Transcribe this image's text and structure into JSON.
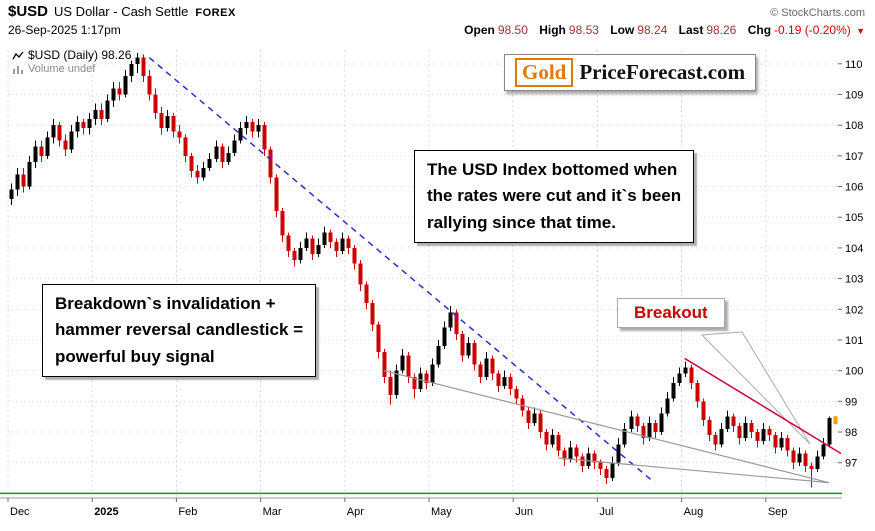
{
  "header": {
    "symbol": "$USD",
    "description": "US Dollar - Cash Settle",
    "exchange": "FOREX",
    "copyright": "© StockCharts.com",
    "datetime": "26-Sep-2025 1:17pm",
    "quote_items": [
      {
        "label": "Open",
        "value": "98.50"
      },
      {
        "label": "High",
        "value": "98.53"
      },
      {
        "label": "Low",
        "value": "98.24"
      },
      {
        "label": "Last",
        "value": "98.26"
      },
      {
        "label": "Chg",
        "value": "-0.19 (-0.20%)"
      }
    ],
    "down_triangle": "▼"
  },
  "legend": {
    "series": "$USD (Daily) 98.26",
    "volume": "Volume undef"
  },
  "logo": {
    "gold": "Gold",
    "rest": "PriceForecast.com"
  },
  "annotations": {
    "note_top": "The USD Index bottomed when\nthe rates were cut and it`s been\nrallying since that time.",
    "note_left": "Breakdown`s invalidation +\nhammer reversal candlestick =\npowerful buy signal",
    "breakout_label": "Breakout"
  },
  "chart_data": {
    "type": "candlestick",
    "symbol": "$USD",
    "timeframe": "Daily",
    "last_price": 98.26,
    "ylim": [
      95.85,
      110.45
    ],
    "y_ticks": [
      97,
      98,
      99,
      100,
      101,
      102,
      103,
      104,
      105,
      106,
      107,
      108,
      109,
      110
    ],
    "x_labels": [
      {
        "label": "Dec",
        "index": 0
      },
      {
        "label": "2025",
        "index": 14,
        "bold": true
      },
      {
        "label": "Feb",
        "index": 28
      },
      {
        "label": "Mar",
        "index": 42
      },
      {
        "label": "Apr",
        "index": 56
      },
      {
        "label": "May",
        "index": 70
      },
      {
        "label": "Jun",
        "index": 84
      },
      {
        "label": "Jul",
        "index": 98
      },
      {
        "label": "Aug",
        "index": 112
      },
      {
        "label": "Sep",
        "index": 126
      }
    ],
    "colors": {
      "up": "#000000",
      "down": "#cc0000",
      "last": "#ff9900",
      "grid": "#d9d9d9"
    },
    "candles": [
      [
        105.6,
        106.1,
        105.4,
        105.9
      ],
      [
        105.9,
        106.6,
        105.7,
        106.4
      ],
      [
        106.4,
        106.6,
        105.8,
        106.0
      ],
      [
        106.0,
        107.0,
        105.9,
        106.8
      ],
      [
        106.8,
        107.5,
        106.6,
        107.3
      ],
      [
        107.3,
        107.5,
        106.8,
        107.0
      ],
      [
        107.0,
        107.8,
        106.9,
        107.6
      ],
      [
        107.6,
        108.2,
        107.4,
        108.0
      ],
      [
        108.0,
        108.1,
        107.3,
        107.5
      ],
      [
        107.5,
        107.7,
        107.0,
        107.2
      ],
      [
        107.2,
        108.0,
        107.1,
        107.8
      ],
      [
        107.8,
        108.3,
        107.6,
        108.1
      ],
      [
        108.1,
        108.2,
        107.7,
        107.9
      ],
      [
        107.9,
        108.4,
        107.7,
        108.2
      ],
      [
        108.2,
        108.7,
        108.0,
        108.5
      ],
      [
        108.5,
        108.7,
        108.0,
        108.2
      ],
      [
        108.2,
        109.0,
        108.1,
        108.8
      ],
      [
        108.8,
        109.4,
        108.6,
        109.2
      ],
      [
        109.2,
        109.4,
        108.8,
        109.0
      ],
      [
        109.0,
        109.8,
        108.9,
        109.6
      ],
      [
        109.6,
        110.1,
        109.4,
        110.0
      ],
      [
        110.0,
        110.35,
        109.7,
        110.2
      ],
      [
        110.2,
        110.3,
        109.4,
        109.6
      ],
      [
        109.6,
        109.8,
        108.8,
        109.0
      ],
      [
        109.0,
        109.2,
        108.2,
        108.4
      ],
      [
        108.4,
        108.6,
        107.7,
        107.9
      ],
      [
        107.9,
        108.5,
        107.8,
        108.3
      ],
      [
        108.3,
        108.4,
        107.6,
        107.8
      ],
      [
        107.8,
        108.0,
        107.4,
        107.6
      ],
      [
        107.6,
        107.7,
        106.8,
        107.0
      ],
      [
        107.0,
        107.1,
        106.3,
        106.5
      ],
      [
        106.5,
        106.7,
        106.1,
        106.3
      ],
      [
        106.3,
        106.8,
        106.2,
        106.6
      ],
      [
        106.6,
        107.1,
        106.5,
        106.9
      ],
      [
        106.9,
        107.5,
        106.8,
        107.3
      ],
      [
        107.3,
        107.4,
        106.6,
        106.8
      ],
      [
        106.8,
        107.3,
        106.7,
        107.1
      ],
      [
        107.1,
        107.7,
        107.0,
        107.5
      ],
      [
        107.5,
        108.1,
        107.4,
        107.9
      ],
      [
        107.9,
        108.3,
        107.7,
        108.1
      ],
      [
        108.1,
        108.2,
        107.6,
        107.8
      ],
      [
        107.8,
        108.2,
        107.6,
        108.0
      ],
      [
        108.0,
        108.1,
        107.0,
        107.2
      ],
      [
        107.2,
        107.3,
        106.1,
        106.3
      ],
      [
        106.3,
        106.4,
        105.0,
        105.2
      ],
      [
        105.2,
        105.3,
        104.2,
        104.4
      ],
      [
        104.4,
        104.5,
        103.7,
        103.9
      ],
      [
        103.9,
        104.0,
        103.4,
        103.6
      ],
      [
        103.6,
        104.2,
        103.5,
        104.0
      ],
      [
        104.0,
        104.5,
        103.9,
        104.3
      ],
      [
        104.3,
        104.4,
        103.6,
        103.8
      ],
      [
        103.8,
        104.3,
        103.7,
        104.1
      ],
      [
        104.1,
        104.7,
        104.0,
        104.5
      ],
      [
        104.5,
        104.6,
        104.0,
        104.2
      ],
      [
        104.2,
        104.3,
        103.7,
        103.9
      ],
      [
        103.9,
        104.5,
        103.8,
        104.3
      ],
      [
        104.3,
        104.4,
        103.8,
        104.0
      ],
      [
        104.0,
        104.1,
        103.3,
        103.5
      ],
      [
        103.5,
        103.6,
        102.6,
        102.8
      ],
      [
        102.8,
        102.9,
        102.0,
        102.2
      ],
      [
        102.2,
        102.3,
        101.3,
        101.5
      ],
      [
        101.5,
        101.6,
        100.4,
        100.6
      ],
      [
        100.6,
        100.7,
        99.6,
        99.8
      ],
      [
        99.8,
        100.0,
        98.9,
        99.2
      ],
      [
        99.2,
        100.2,
        99.1,
        100.0
      ],
      [
        100.0,
        100.7,
        99.9,
        100.5
      ],
      [
        100.5,
        100.6,
        99.6,
        99.8
      ],
      [
        99.8,
        99.9,
        99.1,
        99.4
      ],
      [
        99.4,
        100.1,
        99.3,
        99.9
      ],
      [
        99.9,
        100.0,
        99.4,
        99.6
      ],
      [
        99.6,
        100.4,
        99.5,
        100.2
      ],
      [
        100.2,
        101.0,
        100.1,
        100.8
      ],
      [
        100.8,
        101.6,
        100.7,
        101.4
      ],
      [
        101.4,
        102.1,
        101.3,
        101.9
      ],
      [
        101.9,
        102.0,
        101.0,
        101.2
      ],
      [
        101.2,
        101.3,
        100.3,
        100.5
      ],
      [
        100.5,
        101.1,
        100.4,
        100.9
      ],
      [
        100.9,
        101.0,
        100.0,
        100.2
      ],
      [
        100.2,
        100.3,
        99.6,
        99.8
      ],
      [
        99.8,
        100.6,
        99.7,
        100.4
      ],
      [
        100.4,
        100.5,
        99.7,
        99.9
      ],
      [
        99.9,
        100.0,
        99.3,
        99.5
      ],
      [
        99.5,
        100.0,
        99.4,
        99.8
      ],
      [
        99.8,
        99.9,
        99.2,
        99.4
      ],
      [
        99.4,
        99.5,
        98.9,
        99.1
      ],
      [
        99.1,
        99.2,
        98.5,
        98.7
      ],
      [
        98.7,
        98.8,
        98.1,
        98.3
      ],
      [
        98.3,
        98.8,
        98.2,
        98.6
      ],
      [
        98.6,
        98.7,
        97.8,
        98.0
      ],
      [
        98.0,
        98.1,
        97.4,
        97.6
      ],
      [
        97.6,
        98.1,
        97.5,
        97.9
      ],
      [
        97.9,
        98.0,
        97.2,
        97.4
      ],
      [
        97.4,
        97.5,
        96.9,
        97.1
      ],
      [
        97.1,
        97.7,
        97.0,
        97.5
      ],
      [
        97.5,
        97.6,
        97.0,
        97.2
      ],
      [
        97.2,
        97.3,
        96.7,
        96.9
      ],
      [
        96.9,
        97.5,
        96.8,
        97.3
      ],
      [
        97.3,
        97.4,
        96.8,
        97.0
      ],
      [
        97.0,
        97.1,
        96.6,
        96.8
      ],
      [
        96.8,
        96.9,
        96.3,
        96.5
      ],
      [
        96.5,
        97.2,
        96.4,
        97.0
      ],
      [
        97.0,
        97.8,
        96.9,
        97.6
      ],
      [
        97.6,
        98.3,
        97.5,
        98.1
      ],
      [
        98.1,
        98.7,
        98.0,
        98.5
      ],
      [
        98.5,
        98.6,
        98.0,
        98.2
      ],
      [
        98.2,
        98.3,
        97.6,
        97.8
      ],
      [
        97.8,
        98.5,
        97.7,
        98.3
      ],
      [
        98.3,
        98.4,
        97.8,
        98.0
      ],
      [
        98.0,
        98.8,
        97.9,
        98.6
      ],
      [
        98.6,
        99.3,
        98.5,
        99.1
      ],
      [
        99.1,
        99.8,
        99.0,
        99.6
      ],
      [
        99.6,
        100.1,
        99.5,
        99.9
      ],
      [
        99.9,
        100.3,
        99.8,
        100.1
      ],
      [
        100.1,
        100.2,
        99.4,
        99.6
      ],
      [
        99.6,
        99.7,
        98.8,
        99.0
      ],
      [
        99.0,
        99.1,
        98.2,
        98.4
      ],
      [
        98.4,
        98.5,
        97.7,
        97.9
      ],
      [
        97.9,
        98.0,
        97.4,
        97.6
      ],
      [
        97.6,
        98.3,
        97.5,
        98.1
      ],
      [
        98.1,
        98.7,
        98.0,
        98.5
      ],
      [
        98.5,
        98.6,
        98.0,
        98.2
      ],
      [
        98.2,
        98.3,
        97.6,
        97.8
      ],
      [
        97.8,
        98.5,
        97.7,
        98.3
      ],
      [
        98.3,
        98.4,
        97.8,
        98.0
      ],
      [
        98.0,
        98.1,
        97.5,
        97.7
      ],
      [
        97.7,
        98.3,
        97.6,
        98.1
      ],
      [
        98.1,
        98.2,
        97.7,
        97.9
      ],
      [
        97.9,
        98.0,
        97.3,
        97.5
      ],
      [
        97.5,
        98.0,
        97.4,
        97.8
      ],
      [
        97.8,
        97.9,
        97.2,
        97.4
      ],
      [
        97.4,
        97.5,
        96.8,
        97.0
      ],
      [
        97.0,
        97.5,
        96.9,
        97.3
      ],
      [
        97.3,
        97.4,
        96.7,
        96.9
      ],
      [
        96.9,
        97.0,
        96.2,
        96.8
      ],
      [
        96.8,
        97.4,
        96.7,
        97.2
      ],
      [
        97.2,
        97.8,
        97.1,
        97.6
      ],
      [
        97.6,
        98.5,
        97.5,
        98.45
      ],
      [
        98.5,
        98.53,
        98.24,
        98.26
      ]
    ],
    "overlays": {
      "trendlines": [
        {
          "name": "blue-dashed-downtrend-line",
          "color": "#2b2bd4",
          "dash": "6,5",
          "width": 1.5,
          "from": [
            23,
            110.2
          ],
          "to": [
            107,
            96.35
          ]
        },
        {
          "name": "gray-support-line-1",
          "color": "#999999",
          "dash": "",
          "width": 1.2,
          "from": [
            62,
            100.0
          ],
          "to": [
            136,
            96.35
          ]
        },
        {
          "name": "gray-support-line-2",
          "color": "#999999",
          "dash": "",
          "width": 1.2,
          "from": [
            91,
            97.15
          ],
          "to": [
            136,
            96.35
          ]
        },
        {
          "name": "red-resistance-line",
          "color": "#cc0033",
          "dash": "",
          "width": 1.5,
          "from": [
            112,
            100.4
          ],
          "to": [
            138,
            97.3
          ]
        }
      ],
      "horizontal_lines": [
        {
          "name": "green-support-line",
          "color": "#00a500",
          "price": 96.0,
          "width": 1.5
        }
      ]
    }
  }
}
